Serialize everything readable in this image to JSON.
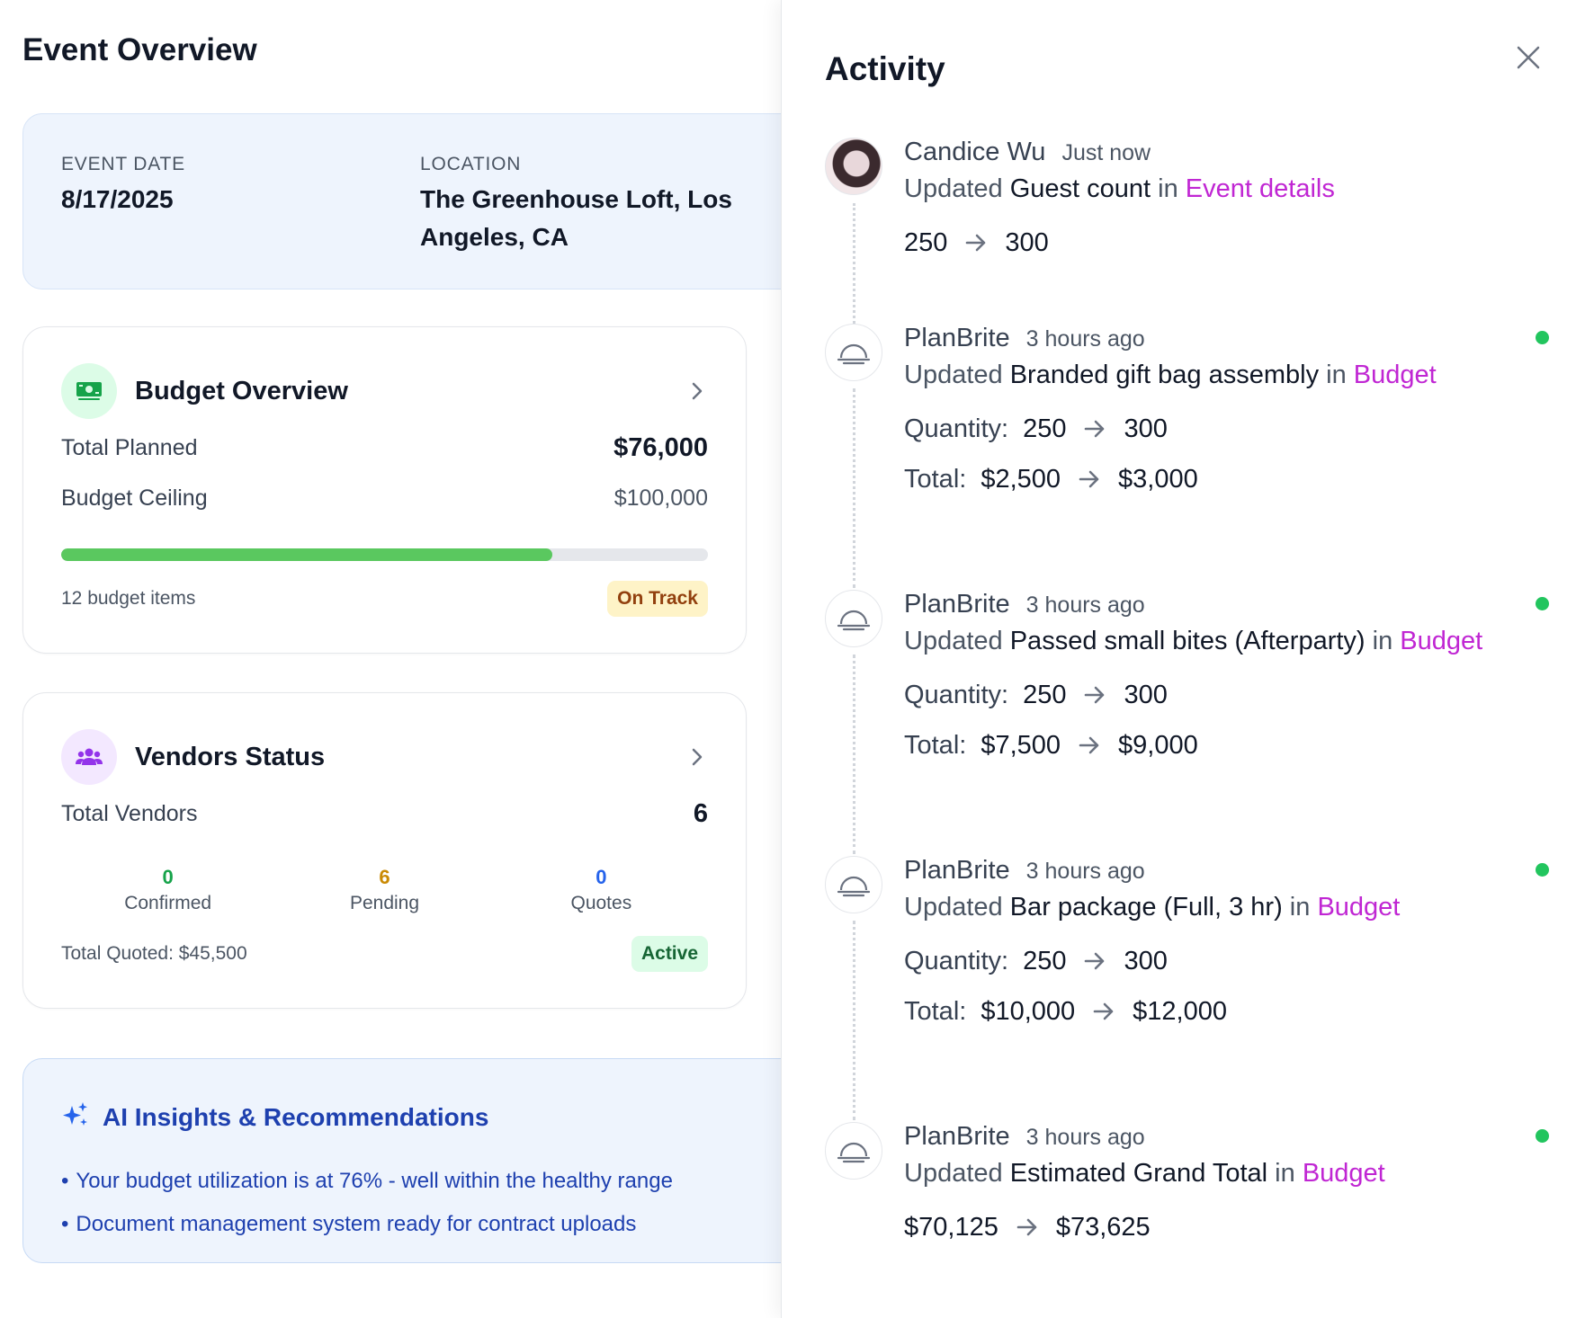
{
  "overview": {
    "title": "Event Overview",
    "info": {
      "date_label": "EVENT DATE",
      "date_value": "8/17/2025",
      "location_label": "LOCATION",
      "location_value": "The Greenhouse Loft, Los Angeles, CA"
    },
    "budget": {
      "title": "Budget Overview",
      "icon": "money-icon",
      "total_planned_label": "Total Planned",
      "total_planned_value": "$76,000",
      "ceiling_label": "Budget Ceiling",
      "ceiling_value": "$100,000",
      "progress_fraction": 0.76,
      "items_count": "12 budget items",
      "status": "On Track"
    },
    "vendors": {
      "title": "Vendors Status",
      "icon": "users-icon",
      "total_label": "Total Vendors",
      "total_value": "6",
      "stats": [
        {
          "value": "0",
          "label": "Confirmed"
        },
        {
          "value": "6",
          "label": "Pending"
        },
        {
          "value": "0",
          "label": "Quotes"
        }
      ],
      "total_quoted": "Total Quoted: $45,500",
      "status": "Active"
    },
    "ai": {
      "title": "AI Insights & Recommendations",
      "icon": "sparkles-icon",
      "items": [
        "Your budget utilization is at 76% - well within the healthy range",
        "Document management system ready for contract uploads"
      ]
    }
  },
  "activity": {
    "title": "Activity",
    "items": [
      {
        "name": "Candice Wu",
        "time": "Just now",
        "verb": "Updated",
        "target": "Guest count",
        "in": "in",
        "area": "Event details",
        "unread": false,
        "changes": [
          {
            "label": "",
            "from": "250",
            "to": "300"
          }
        ]
      },
      {
        "name": "PlanBrite",
        "time": "3 hours ago",
        "verb": "Updated",
        "target": "Branded gift bag assembly",
        "in": "in",
        "area": "Budget",
        "unread": true,
        "changes": [
          {
            "label": "Quantity:",
            "from": "250",
            "to": "300"
          },
          {
            "label": "Total:",
            "from": "$2,500",
            "to": "$3,000"
          }
        ]
      },
      {
        "name": "PlanBrite",
        "time": "3 hours ago",
        "verb": "Updated",
        "target": "Passed small bites (Afterparty)",
        "in": "in",
        "area": "Budget",
        "unread": true,
        "changes": [
          {
            "label": "Quantity:",
            "from": "250",
            "to": "300"
          },
          {
            "label": "Total:",
            "from": "$7,500",
            "to": "$9,000"
          }
        ]
      },
      {
        "name": "PlanBrite",
        "time": "3 hours ago",
        "verb": "Updated",
        "target": "Bar package (Full, 3 hr)",
        "in": "in",
        "area": "Budget",
        "unread": true,
        "changes": [
          {
            "label": "Quantity:",
            "from": "250",
            "to": "300"
          },
          {
            "label": "Total:",
            "from": "$10,000",
            "to": "$12,000"
          }
        ]
      },
      {
        "name": "PlanBrite",
        "time": "3 hours ago",
        "verb": "Updated",
        "target": "Estimated Grand Total",
        "in": "in",
        "area": "Budget",
        "unread": true,
        "changes": [
          {
            "label": "",
            "from": "$70,125",
            "to": "$73,625"
          }
        ]
      }
    ]
  },
  "colors": {
    "accent_magenta": "#c026d3",
    "progress_green": "#5ac85f",
    "unread_dot": "#22c55e",
    "insight_blue": "#1e40af"
  }
}
